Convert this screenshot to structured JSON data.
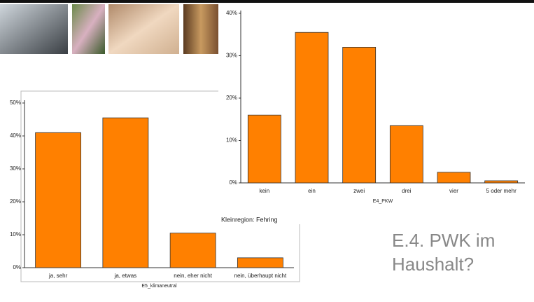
{
  "slide_title": [
    "E.4. PWK im",
    "Haushalt?"
  ],
  "chart_data": [
    {
      "type": "bar",
      "x_label": "E5_klimaneutral",
      "categories": [
        "ja, sehr",
        "ja, etwas",
        "nein, eher nicht",
        "nein, überhaupt nicht"
      ],
      "values": [
        41,
        45.5,
        10.5,
        3
      ],
      "color": "#ff8000",
      "ylim": [
        0,
        50
      ],
      "yticks": [
        {
          "value": 0,
          "label": "0%"
        },
        {
          "value": 10,
          "label": "10%"
        },
        {
          "value": 20,
          "label": "20%"
        },
        {
          "value": 30,
          "label": "30%"
        },
        {
          "value": 40,
          "label": "40%"
        },
        {
          "value": 50,
          "label": "50%"
        }
      ]
    },
    {
      "type": "bar",
      "x_label": "E4_PKW",
      "note": "Kleinregion: Fehring",
      "categories": [
        "kein",
        "ein",
        "zwei",
        "drei",
        "vier",
        "5 oder mehr"
      ],
      "values": [
        16,
        35.5,
        32,
        13.5,
        2.5,
        0.5
      ],
      "color": "#ff8000",
      "ylim": [
        0,
        40
      ],
      "yticks": [
        {
          "value": 0,
          "label": "0%"
        },
        {
          "value": 10,
          "label": "10%"
        },
        {
          "value": 20,
          "label": "20%"
        },
        {
          "value": 30,
          "label": "30%"
        },
        {
          "value": 40,
          "label": "40%"
        }
      ]
    }
  ]
}
